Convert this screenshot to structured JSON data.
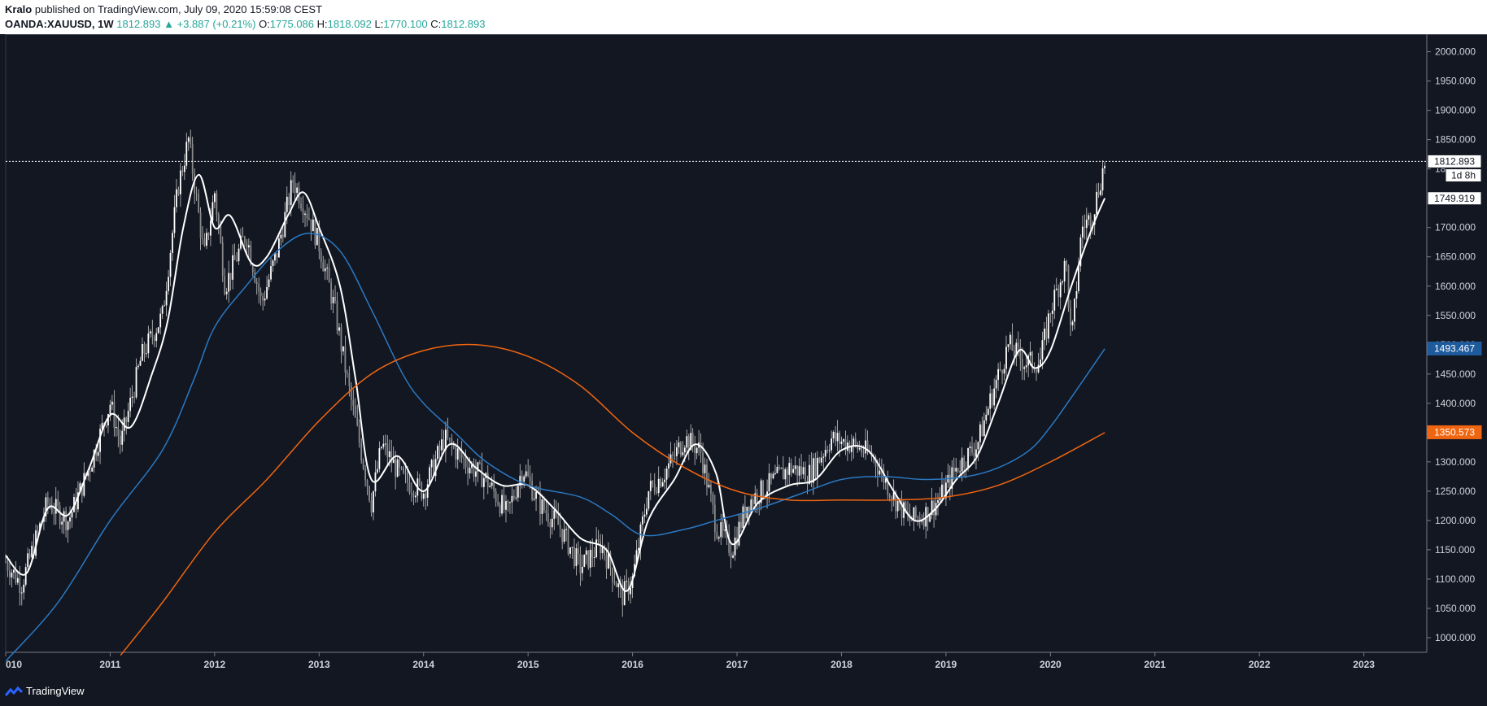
{
  "header": {
    "author": "Kralo",
    "publisher_text": "published on TradingView.com, July 09, 2020 15:59:08 CEST",
    "symbol": "OANDA:XAUUSD, 1W",
    "last": "1812.893",
    "change": "▲ +3.887 (+0.21%)",
    "o_label": "O:",
    "o_value": "1775.086",
    "h_label": "H:",
    "h_value": "1818.092",
    "l_label": "L:",
    "l_value": "1770.100",
    "c_label": "C:",
    "c_value": "1812.893"
  },
  "footer": {
    "brand": "TradingView"
  },
  "colors": {
    "background": "#131722",
    "candle": "#ffffff",
    "fast_ma": "#ffffff",
    "mid_ma": "#2a79c2",
    "slow_ma": "#f0650f"
  },
  "chart_data": {
    "type": "line",
    "ylim": [
      975,
      2030
    ],
    "xlim": [
      2010.0,
      2023.4
    ],
    "y_ticks": [
      "1000.000",
      "1050.000",
      "1100.000",
      "1150.000",
      "1200.000",
      "1250.000",
      "1300.000",
      "1350.000",
      "1400.000",
      "1450.000",
      "1500.000",
      "1550.000",
      "1600.000",
      "1650.000",
      "1700.000",
      "1750.000",
      "1800.000",
      "1850.000",
      "1900.000",
      "1950.000",
      "2000.000"
    ],
    "x_ticks": [
      "010",
      "2011",
      "2012",
      "2013",
      "2014",
      "2015",
      "2016",
      "2017",
      "2018",
      "2019",
      "2020",
      "2021",
      "2022",
      "2023"
    ],
    "price_line": 1812.893,
    "labels": [
      {
        "text": "1812.893",
        "value": 1812.893,
        "style": "white"
      },
      {
        "text": "1d 8h",
        "value": 1789,
        "style": "white"
      },
      {
        "text": "1749.919",
        "value": 1749.919,
        "style": "white"
      },
      {
        "text": "1493.467",
        "value": 1493.467,
        "style": "blue"
      },
      {
        "text": "1350.573",
        "value": 1350.573,
        "style": "orange"
      }
    ],
    "price_anchors": {
      "x": [
        2010.0,
        2010.15,
        2010.4,
        2010.6,
        2010.8,
        2011.0,
        2011.1,
        2011.3,
        2011.5,
        2011.65,
        2011.75,
        2011.9,
        2012.0,
        2012.1,
        2012.3,
        2012.45,
        2012.6,
        2012.75,
        2012.9,
        2013.0,
        2013.15,
        2013.3,
        2013.5,
        2013.6,
        2013.8,
        2014.0,
        2014.2,
        2014.4,
        2014.6,
        2014.8,
        2014.95,
        2015.1,
        2015.3,
        2015.5,
        2015.7,
        2015.9,
        2016.0,
        2016.15,
        2016.3,
        2016.5,
        2016.65,
        2016.8,
        2016.95,
        2017.1,
        2017.3,
        2017.5,
        2017.7,
        2017.9,
        2018.1,
        2018.3,
        2018.5,
        2018.65,
        2018.8,
        2018.95,
        2019.1,
        2019.3,
        2019.45,
        2019.6,
        2019.75,
        2019.9,
        2020.0,
        2020.15,
        2020.2,
        2020.3,
        2020.4,
        2020.52
      ],
      "y": [
        1130,
        1090,
        1230,
        1200,
        1290,
        1400,
        1330,
        1480,
        1550,
        1770,
        1850,
        1650,
        1760,
        1600,
        1690,
        1570,
        1660,
        1780,
        1720,
        1670,
        1560,
        1410,
        1230,
        1330,
        1270,
        1250,
        1340,
        1300,
        1270,
        1210,
        1290,
        1230,
        1190,
        1120,
        1160,
        1070,
        1100,
        1250,
        1280,
        1340,
        1320,
        1190,
        1150,
        1230,
        1260,
        1290,
        1280,
        1340,
        1330,
        1310,
        1240,
        1200,
        1210,
        1240,
        1290,
        1330,
        1420,
        1500,
        1470,
        1470,
        1560,
        1640,
        1500,
        1700,
        1720,
        1812
      ]
    },
    "series": [
      {
        "name": "",
        "color": "#ffffff",
        "x": [
          2010.0,
          2010.2,
          2010.4,
          2010.6,
          2010.8,
          2011.0,
          2011.2,
          2011.4,
          2011.55,
          2011.7,
          2011.85,
          2012.0,
          2012.15,
          2012.35,
          2012.5,
          2012.7,
          2012.85,
          2013.0,
          2013.2,
          2013.35,
          2013.5,
          2013.75,
          2014.0,
          2014.25,
          2014.5,
          2014.75,
          2015.0,
          2015.25,
          2015.5,
          2015.75,
          2015.95,
          2016.15,
          2016.4,
          2016.6,
          2016.8,
          2016.95,
          2017.2,
          2017.5,
          2017.75,
          2018.0,
          2018.25,
          2018.5,
          2018.7,
          2018.9,
          2019.1,
          2019.3,
          2019.5,
          2019.7,
          2019.85,
          2020.0,
          2020.2,
          2020.4,
          2020.52
        ],
        "y": [
          1140,
          1110,
          1220,
          1210,
          1290,
          1380,
          1360,
          1450,
          1540,
          1700,
          1790,
          1700,
          1720,
          1640,
          1650,
          1720,
          1760,
          1700,
          1600,
          1440,
          1270,
          1310,
          1250,
          1330,
          1290,
          1260,
          1260,
          1220,
          1170,
          1150,
          1080,
          1200,
          1270,
          1330,
          1280,
          1160,
          1230,
          1260,
          1270,
          1320,
          1320,
          1250,
          1200,
          1220,
          1270,
          1310,
          1400,
          1490,
          1460,
          1490,
          1600,
          1700,
          1750
        ]
      },
      {
        "name": "",
        "color": "#2a79c2",
        "x": [
          2010.0,
          2010.5,
          2011.0,
          2011.5,
          2011.8,
          2012.0,
          2012.3,
          2012.6,
          2012.9,
          2013.2,
          2013.5,
          2013.8,
          2014.0,
          2014.3,
          2014.6,
          2015.0,
          2015.5,
          2015.8,
          2016.1,
          2016.5,
          2016.8,
          2017.2,
          2017.6,
          2018.0,
          2018.4,
          2018.8,
          2019.2,
          2019.5,
          2019.8,
          2020.0,
          2020.2,
          2020.52
        ],
        "y": [
          960,
          1060,
          1200,
          1320,
          1440,
          1530,
          1600,
          1660,
          1690,
          1660,
          1560,
          1450,
          1400,
          1350,
          1300,
          1260,
          1240,
          1210,
          1175,
          1185,
          1200,
          1220,
          1245,
          1270,
          1275,
          1270,
          1275,
          1290,
          1320,
          1360,
          1410,
          1493
        ]
      },
      {
        "name": "",
        "color": "#f0650f",
        "x": [
          2011.1,
          2011.5,
          2012.0,
          2012.5,
          2013.0,
          2013.5,
          2014.0,
          2014.5,
          2015.0,
          2015.5,
          2016.0,
          2016.5,
          2017.0,
          2017.5,
          2018.0,
          2018.5,
          2019.0,
          2019.5,
          2020.0,
          2020.52
        ],
        "y": [
          970,
          1060,
          1180,
          1270,
          1370,
          1450,
          1490,
          1500,
          1480,
          1430,
          1350,
          1290,
          1250,
          1235,
          1235,
          1235,
          1240,
          1260,
          1300,
          1350
        ]
      }
    ]
  }
}
